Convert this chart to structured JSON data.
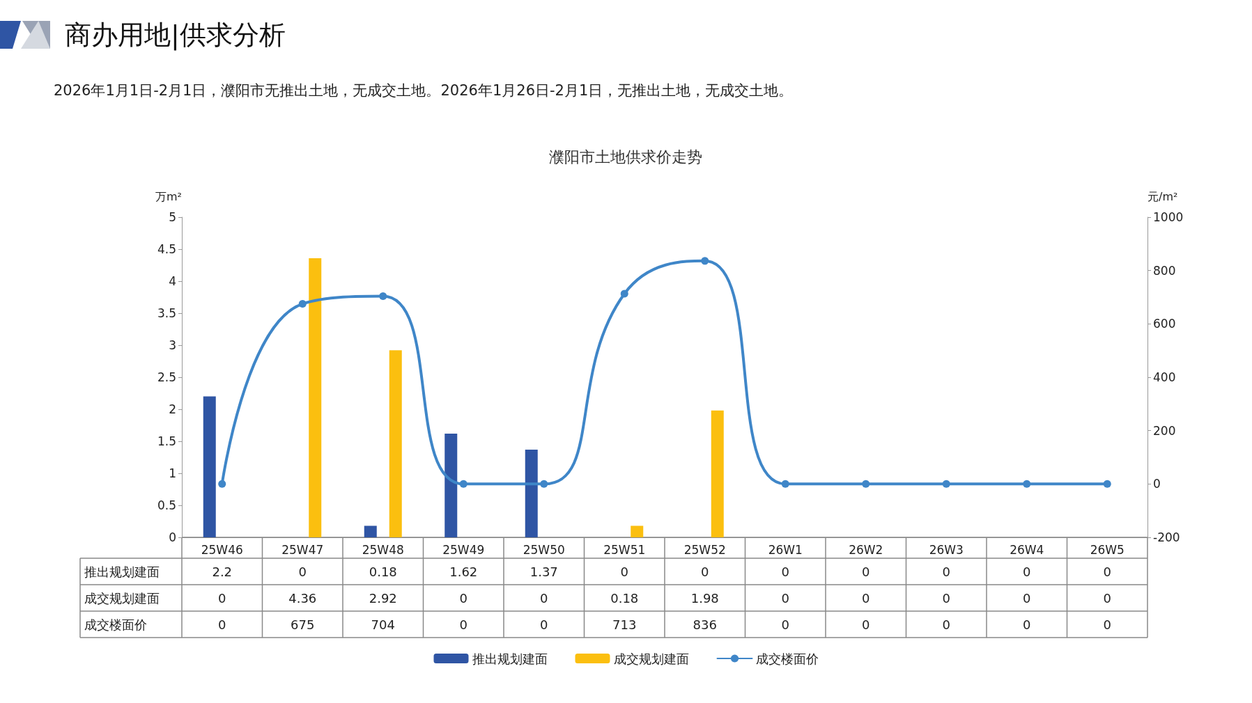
{
  "chart_data": {
    "type": "bar",
    "title": "商办用地|供求分析",
    "subtitle": "2026年1月1日-2月1日，濮阳市无推出土地，无成交土地。2026年1月26日-2月1日，无推出土地，无成交土地。",
    "annotations": [
      "濮阳市土地供求价走势"
    ],
    "ylabel": "万m²",
    "y2label": "元/m²",
    "categories": [
      "25W46",
      "25W47",
      "25W48",
      "25W49",
      "25W50",
      "25W51",
      "25W52",
      "26W1",
      "26W2",
      "26W3",
      "26W4",
      "26W5"
    ],
    "series": [
      {
        "name": "推出规划建面",
        "color": "#2f55a4",
        "values": [
          2.2,
          0,
          0.18,
          1.62,
          1.37,
          0,
          0,
          0,
          0,
          0,
          0,
          0
        ]
      },
      {
        "name": "成交规划建面",
        "color": "#fbbf0f",
        "values": [
          0,
          4.36,
          2.92,
          0,
          0,
          0.18,
          1.98,
          0,
          0,
          0,
          0,
          0
        ]
      },
      {
        "name": "成交楼面价",
        "type": "line",
        "axis": "y2",
        "color": "#3f86c8",
        "values": [
          0,
          675,
          704,
          0,
          0,
          713,
          836,
          0,
          0,
          0,
          0,
          0
        ]
      }
    ],
    "ylim": [
      0,
      5
    ],
    "yticks": [
      0,
      0.5,
      1,
      1.5,
      2,
      2.5,
      3,
      3.5,
      4,
      4.5,
      5
    ],
    "y2lim": [
      -200,
      1000
    ],
    "y2ticks": [
      -200,
      0,
      200,
      400,
      600,
      800,
      1000
    ],
    "data_labels": true,
    "grid": false,
    "legend": "bottom",
    "marker": "circle",
    "line_style": "solid"
  }
}
